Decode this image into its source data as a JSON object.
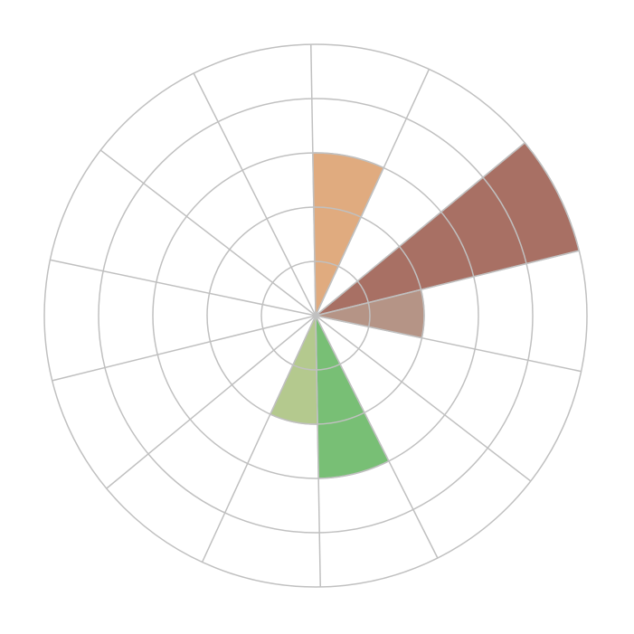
{
  "chart_data": {
    "type": "polar-area",
    "categories": [
      null,
      null,
      null,
      null,
      null,
      null,
      null,
      null,
      null,
      null,
      null,
      null,
      null,
      null
    ],
    "values": [
      3,
      0,
      5,
      2,
      0,
      0,
      3,
      2,
      0,
      0,
      0,
      0,
      0,
      0
    ],
    "colors": [
      "#e0ab7f",
      null,
      "#a87064",
      "#b59486",
      null,
      null,
      "#78bf75",
      "#b4c98e",
      null,
      null,
      null,
      null,
      null,
      null
    ],
    "rlim": [
      0,
      5
    ],
    "rticks": [
      1,
      2,
      3,
      4,
      5
    ],
    "grid": true
  }
}
